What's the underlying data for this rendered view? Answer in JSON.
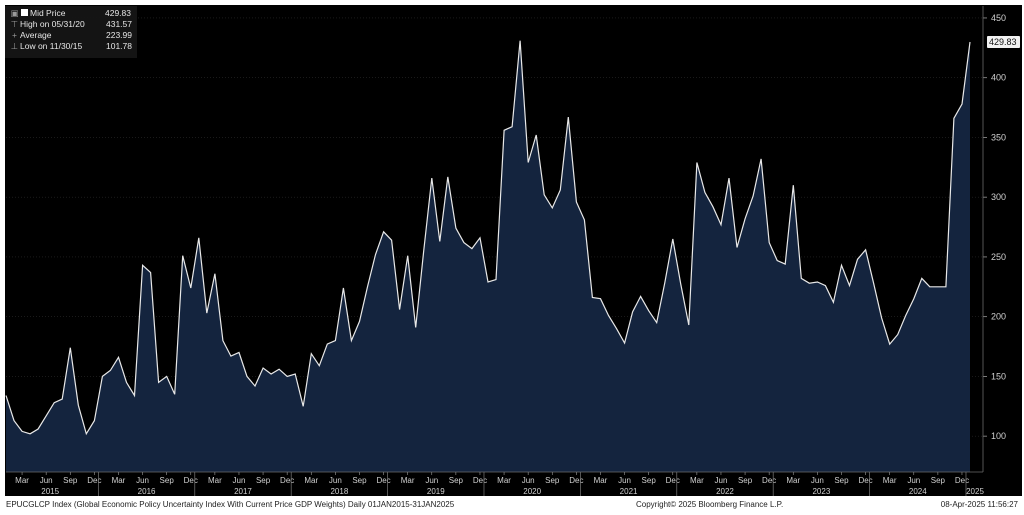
{
  "chart_data": {
    "type": "area",
    "series": [
      {
        "name": "Mid Price",
        "frequency": "monthly",
        "start": "2015-01",
        "values": [
          134,
          113,
          104,
          102,
          106,
          117,
          128,
          131,
          174,
          126,
          102,
          113,
          150,
          155,
          166,
          145,
          134,
          243,
          237,
          145,
          150,
          135,
          251,
          224,
          266,
          203,
          236,
          180,
          167,
          170,
          150,
          142,
          157,
          152,
          156,
          150,
          152,
          125,
          169,
          159,
          177,
          180,
          224,
          180,
          196,
          225,
          252,
          271,
          264,
          206,
          251,
          191,
          255,
          316,
          263,
          317,
          274,
          262,
          257,
          266,
          229,
          231,
          356,
          359,
          431,
          329,
          352,
          302,
          291,
          306,
          367,
          296,
          281,
          216,
          215,
          201,
          190,
          178,
          204,
          217,
          205,
          195,
          228,
          265,
          227,
          193,
          329,
          304,
          292,
          277,
          316,
          258,
          282,
          301,
          332,
          262,
          247,
          244,
          310,
          232,
          228,
          229,
          226,
          212,
          243,
          226,
          248,
          256,
          228,
          199,
          177,
          185,
          201,
          215,
          232,
          225,
          225,
          225,
          366,
          378,
          429.83
        ]
      }
    ],
    "legend": {
      "mid_label": "Mid Price",
      "mid_value": "429.83",
      "high_label": "High on 05/31/20",
      "high_value": "431.57",
      "avg_label": "Average",
      "avg_value": "223.99",
      "low_label": "Low on 11/30/15",
      "low_value": "101.78"
    },
    "y_axis": {
      "min": 70,
      "max": 460,
      "ticks": [
        "450",
        "400",
        "350",
        "300",
        "250",
        "200",
        "150",
        "100"
      ],
      "position": "right"
    },
    "last_value_label": "429.83",
    "x_axis": {
      "months": [
        "Mar",
        "Jun",
        "Sep",
        "Dec"
      ],
      "years": [
        "2015",
        "2016",
        "2017",
        "2018",
        "2019",
        "2020",
        "2021",
        "2022",
        "2023",
        "2024",
        "2025"
      ]
    },
    "colors": {
      "background": "#000000",
      "fill": "#14243e",
      "line": "#e8e8e8",
      "grid": "#2a2a2a"
    }
  },
  "footer": {
    "left": "EPUCGLCP Index (Global Economic Policy Uncertainty Index With Current Price GDP Weights)  Daily 01JAN2015-31JAN2025",
    "center": "Copyright© 2025 Bloomberg Finance L.P.",
    "right": "08-Apr-2025 11:56:27"
  }
}
